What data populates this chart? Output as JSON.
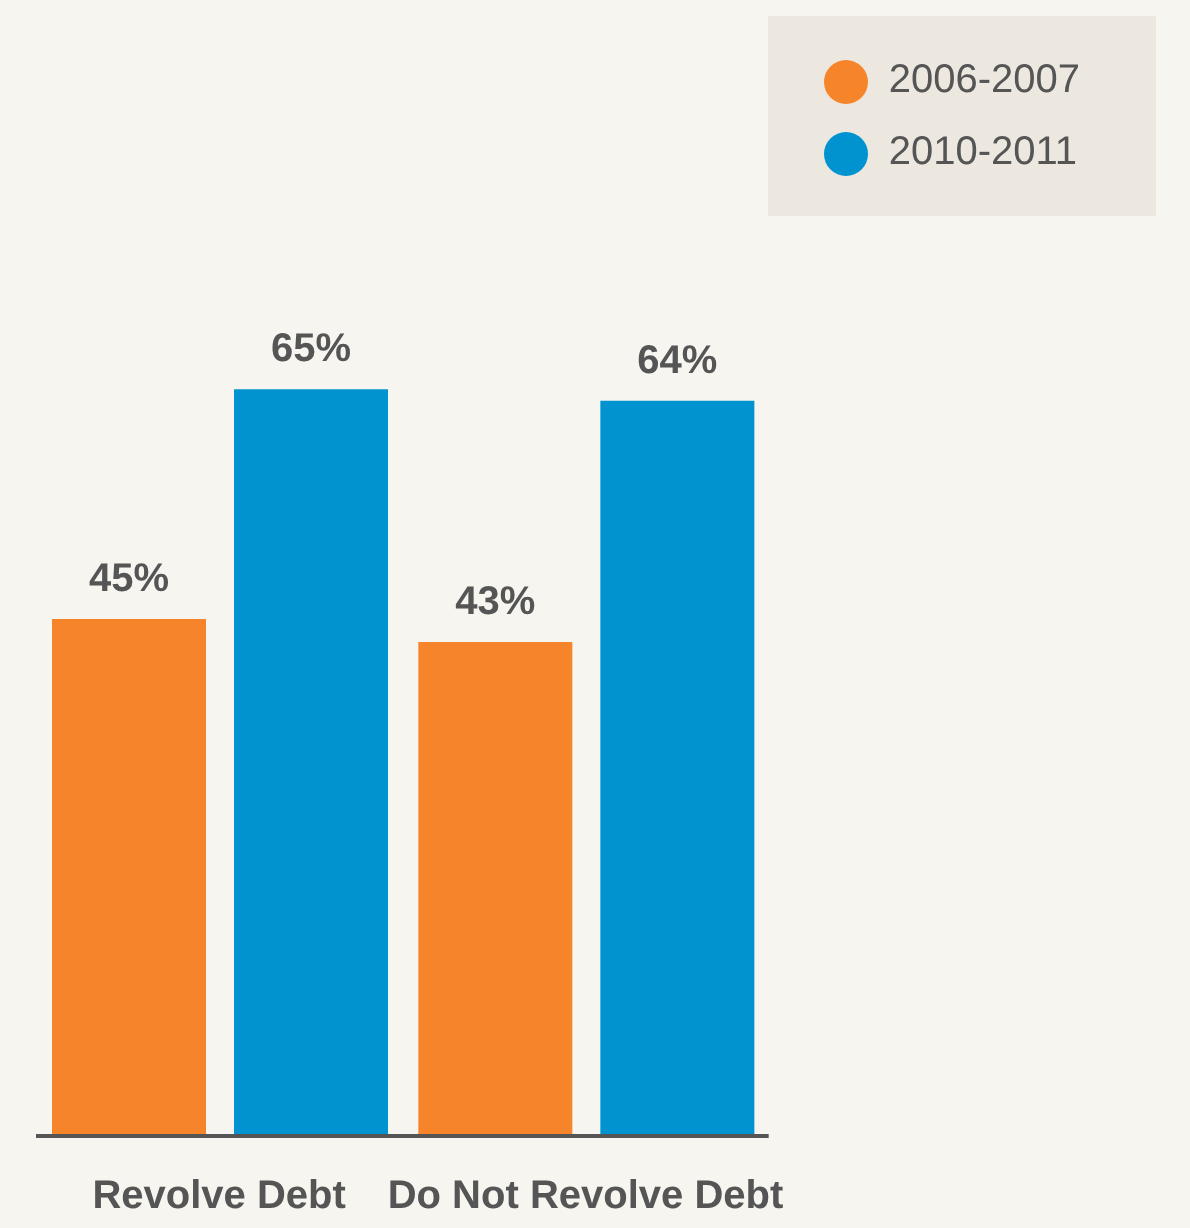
{
  "chart_data": {
    "type": "bar",
    "categories": [
      "Revolve Debt",
      "Do Not Revolve Debt"
    ],
    "legend": "top right",
    "series": [
      {
        "name": "2006-2007",
        "color": "#f5842a",
        "values": [
          45,
          43
        ],
        "value_labels": [
          "45%",
          "43%"
        ]
      },
      {
        "name": "2010-2011",
        "color": "#0093d0",
        "values": [
          65,
          64
        ],
        "value_labels": [
          "65%",
          "64%"
        ]
      }
    ]
  }
}
